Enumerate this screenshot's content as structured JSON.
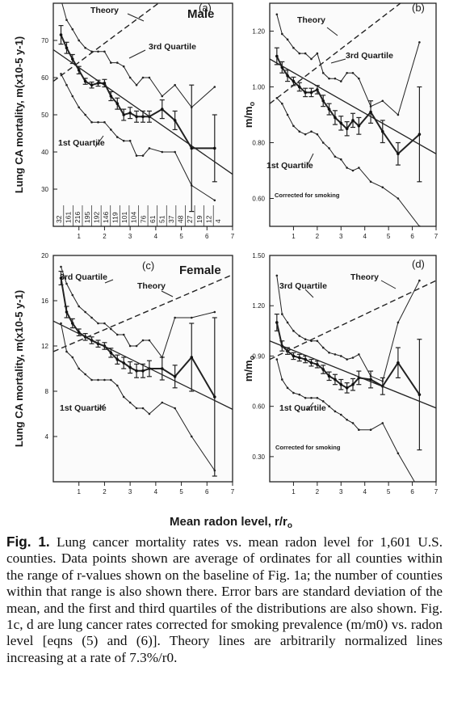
{
  "figure": {
    "xlabel": "Mean radon level, r/r",
    "xlabel_sub": "o",
    "caption_label": "Fig. 1.",
    "caption_text": "Lung cancer mortality rates vs. mean radon level for 1,601 U.S. counties. Data points shown are average of ordinates for all counties within the range of r-values shown on the baseline of Fig. 1a; the number of counties within that range is also shown there. Error bars are standard deviation of the mean, and the first and third quartiles of the distributions are also shown. Fig. 1c, d are lung cancer rates corrected for smoking prevalence (m/m0) vs. radon level [eqns (5) and (6)]. Theory lines are arbitrarily normalized lines increasing at a rate of 7.3%/r0."
  },
  "chart_data": [
    {
      "type": "line",
      "panel_label": "(a)",
      "title": "Male",
      "ylabel": "Lung CA mortality, m(x10-5 y-1)",
      "xlim": [
        0,
        7
      ],
      "ylim": [
        20,
        80
      ],
      "yticks": [
        30,
        40,
        50,
        60,
        70
      ],
      "xticks": [
        1,
        2,
        3,
        4,
        5,
        6,
        7
      ],
      "x": [
        0.3,
        0.52,
        0.75,
        1.0,
        1.25,
        1.5,
        1.75,
        2.0,
        2.25,
        2.5,
        2.75,
        3.0,
        3.25,
        3.5,
        3.75,
        4.25,
        4.75,
        5.4,
        6.3
      ],
      "series": [
        {
          "name": "Mean",
          "values": [
            71.5,
            68,
            65,
            62,
            59,
            58,
            58.5,
            58.5,
            55,
            53,
            50,
            50.5,
            49.5,
            49.5,
            49.5,
            51.5,
            48.5,
            41,
            41
          ],
          "errors": [
            2.5,
            1.5,
            1.2,
            1,
            0.8,
            0.8,
            0.8,
            1,
            1.2,
            1.5,
            1.5,
            1.5,
            1.5,
            1.5,
            1.5,
            2.5,
            2.5,
            17,
            9
          ]
        },
        {
          "name": "3rd Quartile",
          "values": [
            81,
            75.5,
            73,
            70,
            68,
            67,
            67,
            67,
            64,
            64,
            63,
            60,
            58,
            60,
            60,
            55,
            58,
            52,
            57.5
          ]
        },
        {
          "name": "1st Quartile",
          "values": [
            61,
            58,
            55,
            52,
            50,
            48,
            48,
            48,
            46,
            44,
            43,
            43,
            39,
            39,
            41,
            40,
            40,
            31,
            27
          ]
        },
        {
          "name": "Theory",
          "values_at_x": [
            [
              0,
              59
            ],
            [
              4.3,
              81
            ]
          ]
        }
      ],
      "fit_line": [
        [
          0,
          67.5
        ],
        [
          7,
          34
        ]
      ],
      "annotations": [
        "Theory",
        "3rd Quartile",
        "1st Quartile"
      ],
      "bin_counts": [
        "32",
        "161",
        "216",
        "195",
        "192",
        "146",
        "119",
        "101",
        "104",
        "76",
        "61",
        "51",
        "37",
        "48",
        "27",
        "19",
        "12",
        "4"
      ]
    },
    {
      "type": "line",
      "panel_label": "(b)",
      "ylabel": "m/m",
      "ylabel_sub": "o",
      "xlim": [
        0,
        7
      ],
      "ylim": [
        0.5,
        1.3
      ],
      "yticks": [
        "0.60",
        "0.80",
        "1.00",
        "1.20"
      ],
      "xticks": [
        1,
        2,
        3,
        4,
        5,
        6,
        7
      ],
      "x": [
        0.3,
        0.52,
        0.75,
        1.0,
        1.25,
        1.5,
        1.75,
        2.0,
        2.25,
        2.5,
        2.75,
        3.0,
        3.25,
        3.5,
        3.75,
        4.25,
        4.75,
        5.4,
        6.3
      ],
      "series": [
        {
          "name": "Mean",
          "values": [
            1.11,
            1.07,
            1.04,
            1.02,
            1.0,
            0.98,
            0.98,
            0.99,
            0.95,
            0.92,
            0.89,
            0.87,
            0.85,
            0.88,
            0.86,
            0.91,
            0.84,
            0.76,
            0.83
          ],
          "errors": [
            0.03,
            0.02,
            0.02,
            0.015,
            0.015,
            0.015,
            0.015,
            0.015,
            0.02,
            0.02,
            0.025,
            0.025,
            0.025,
            0.025,
            0.03,
            0.04,
            0.04,
            0.04,
            0.17
          ]
        },
        {
          "name": "3rd Quartile",
          "values": [
            1.26,
            1.19,
            1.17,
            1.14,
            1.12,
            1.12,
            1.1,
            1.12,
            1.05,
            1.03,
            1.03,
            1.02,
            1.05,
            1.05,
            1.03,
            0.93,
            0.95,
            0.9,
            1.16
          ]
        },
        {
          "name": "1st Quartile",
          "values": [
            0.96,
            0.94,
            0.9,
            0.86,
            0.84,
            0.83,
            0.84,
            0.83,
            0.8,
            0.78,
            0.75,
            0.74,
            0.71,
            0.7,
            0.71,
            0.66,
            0.64,
            0.6,
            0.5
          ]
        },
        {
          "name": "Theory",
          "values_at_x": [
            [
              0,
              0.94
            ],
            [
              5.5,
              1.3
            ]
          ]
        }
      ],
      "fit_line": [
        [
          0,
          1.1
        ],
        [
          7,
          0.76
        ]
      ],
      "annotations": [
        "Theory",
        "3rd Quartile",
        "1st Quartile",
        "Corrected for smoking"
      ]
    },
    {
      "type": "line",
      "panel_label": "(c)",
      "title": "Female",
      "ylabel": "Lung CA mortality, m(x10-5 y-1)",
      "xlim": [
        0,
        7
      ],
      "ylim": [
        0,
        20
      ],
      "yticks": [
        4,
        8,
        12,
        16,
        20
      ],
      "xticks": [
        1,
        2,
        3,
        4,
        5,
        6,
        7
      ],
      "x": [
        0.3,
        0.52,
        0.75,
        1.0,
        1.25,
        1.5,
        1.75,
        2.0,
        2.25,
        2.5,
        2.75,
        3.0,
        3.25,
        3.5,
        3.75,
        4.25,
        4.75,
        5.4,
        6.3
      ],
      "series": [
        {
          "name": "Mean",
          "values": [
            18,
            15,
            14,
            13.2,
            12.8,
            12.5,
            12.2,
            12,
            11.4,
            10.8,
            10.5,
            10.1,
            9.8,
            9.8,
            10,
            10,
            9.3,
            11,
            7.5
          ],
          "errors": [
            0.6,
            0.5,
            0.4,
            0.3,
            0.3,
            0.3,
            0.3,
            0.3,
            0.4,
            0.4,
            0.5,
            0.5,
            0.6,
            0.6,
            0.7,
            1,
            1,
            3,
            7
          ]
        },
        {
          "name": "3rd Quartile",
          "values": [
            19,
            17.5,
            16.5,
            15.5,
            15,
            14.5,
            14,
            14,
            13.5,
            13,
            13,
            12,
            12,
            12.5,
            12.5,
            11,
            14.5,
            14.5,
            15
          ]
        },
        {
          "name": "1st Quartile",
          "values": [
            14,
            11.5,
            11,
            10,
            9.5,
            9,
            9,
            9,
            9,
            8.5,
            7.5,
            7,
            6.5,
            6.5,
            6,
            7,
            6.5,
            4,
            1
          ]
        },
        {
          "name": "Theory",
          "values_at_x": [
            [
              0,
              11.5
            ],
            [
              7,
              18.3
            ]
          ]
        }
      ],
      "fit_line": [
        [
          0,
          14.2
        ],
        [
          7,
          6.4
        ]
      ],
      "annotations": [
        "3rd Quartile",
        "Theory",
        "1st Quartile"
      ]
    },
    {
      "type": "line",
      "panel_label": "(d)",
      "ylabel": "m/m",
      "ylabel_sub": "o",
      "xlim": [
        0,
        7
      ],
      "ylim": [
        0.15,
        1.5
      ],
      "yticks": [
        "0.30",
        "0.60",
        "0.90",
        "1.20",
        "1.50"
      ],
      "xticks": [
        1,
        2,
        3,
        4,
        5,
        6,
        7
      ],
      "x": [
        0.3,
        0.52,
        0.75,
        1.0,
        1.25,
        1.5,
        1.75,
        2.0,
        2.25,
        2.5,
        2.75,
        3.0,
        3.25,
        3.5,
        3.75,
        4.25,
        4.75,
        5.4,
        6.3
      ],
      "series": [
        {
          "name": "Mean",
          "values": [
            1.1,
            0.96,
            0.93,
            0.9,
            0.89,
            0.88,
            0.86,
            0.85,
            0.82,
            0.78,
            0.76,
            0.73,
            0.71,
            0.73,
            0.77,
            0.76,
            0.72,
            0.86,
            0.67
          ],
          "errors": [
            0.05,
            0.03,
            0.02,
            0.02,
            0.02,
            0.02,
            0.02,
            0.02,
            0.025,
            0.025,
            0.03,
            0.03,
            0.03,
            0.035,
            0.04,
            0.05,
            0.05,
            0.09,
            0.33
          ]
        },
        {
          "name": "3rd Quartile",
          "values": [
            1.38,
            1.15,
            1.1,
            1.05,
            1.02,
            1.0,
            0.99,
            0.99,
            0.95,
            0.92,
            0.91,
            0.9,
            0.88,
            0.89,
            0.91,
            0.78,
            0.75,
            1.1,
            1.35
          ]
        },
        {
          "name": "1st Quartile",
          "values": [
            0.88,
            0.76,
            0.71,
            0.68,
            0.67,
            0.65,
            0.65,
            0.65,
            0.63,
            0.6,
            0.57,
            0.55,
            0.52,
            0.5,
            0.46,
            0.46,
            0.5,
            0.32,
            0.1
          ]
        },
        {
          "name": "Theory",
          "values_at_x": [
            [
              0,
              0.88
            ],
            [
              7,
              1.35
            ]
          ]
        }
      ],
      "fit_line": [
        [
          0,
          0.99
        ],
        [
          7,
          0.59
        ]
      ],
      "annotations": [
        "Theory",
        "3rd Quartile",
        "1st Quartile",
        "Corrected for smoking"
      ]
    }
  ]
}
